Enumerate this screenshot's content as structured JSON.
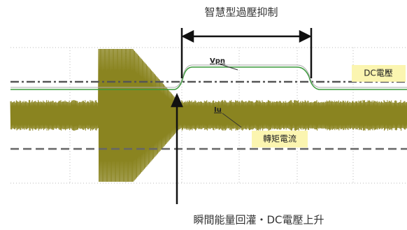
{
  "title": "智慧型過壓抑制",
  "labels": {
    "vpn": "Vpn",
    "dc_voltage": "DC電壓",
    "iu": "Iu",
    "torque_current": "轉矩電流"
  },
  "caption": "瞬間能量回灌・DC電壓上升"
}
